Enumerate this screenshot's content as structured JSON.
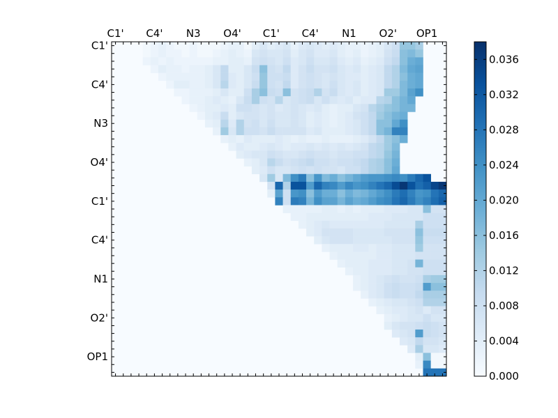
{
  "chart_data": {
    "type": "heatmap",
    "title": "",
    "xlabel": "",
    "ylabel": "",
    "n": 43,
    "x_tick_labels": [
      "C1'",
      "C4'",
      "N3",
      "O4'",
      "C1'",
      "C4'",
      "N1",
      "O2'",
      "OP1"
    ],
    "y_tick_labels": [
      "C1'",
      "C4'",
      "N3",
      "O4'",
      "C1'",
      "C4'",
      "N1",
      "O2'",
      "OP1"
    ],
    "label_indices": [
      0,
      5,
      10,
      15,
      20,
      25,
      30,
      35,
      40
    ],
    "colorbar": {
      "min": 0.0,
      "max": 0.038,
      "ticks": [
        0.0,
        0.004,
        0.008,
        0.012,
        0.016,
        0.02,
        0.024,
        0.028,
        0.032,
        0.036
      ],
      "tick_labels": [
        "0.000",
        "0.004",
        "0.008",
        "0.012",
        "0.016",
        "0.020",
        "0.024",
        "0.028",
        "0.032",
        "0.036"
      ],
      "colormap": [
        "#f7fbff",
        "#deebf7",
        "#c6dbef",
        "#9ecae1",
        "#6baed6",
        "#4292c6",
        "#2171b5",
        "#08519c",
        "#08306b"
      ]
    },
    "rows": [
      {
        "row": 0,
        "start": 4,
        "values": [
          0.001,
          0.002,
          0.003,
          0.002,
          0.001,
          0.001,
          0.002,
          0.001,
          0.001,
          0.001,
          0.002,
          0.003,
          0.003,
          0.001,
          0.004,
          0.006,
          0.004,
          0.005,
          0.006,
          0.003,
          0.005,
          0.006,
          0.005,
          0.004,
          0.005,
          0.004,
          0.003,
          0.003,
          0.002,
          0.003,
          0.004,
          0.006,
          0.008,
          0.015,
          0.015,
          0.013
        ]
      },
      {
        "row": 1,
        "start": 4,
        "values": [
          0.001,
          0.002,
          0.003,
          0.002,
          0.002,
          0.001,
          0.002,
          0.001,
          0.001,
          0.002,
          0.003,
          0.004,
          0.003,
          0.002,
          0.006,
          0.007,
          0.006,
          0.006,
          0.007,
          0.004,
          0.006,
          0.007,
          0.005,
          0.005,
          0.006,
          0.004,
          0.003,
          0.004,
          0.002,
          0.003,
          0.004,
          0.007,
          0.009,
          0.016,
          0.017,
          0.015
        ]
      },
      {
        "row": 2,
        "start": 4,
        "values": [
          0.002,
          0.003,
          0.002,
          0.003,
          0.002,
          0.002,
          0.002,
          0.002,
          0.002,
          0.003,
          0.003,
          0.004,
          0.004,
          0.003,
          0.007,
          0.008,
          0.007,
          0.006,
          0.008,
          0.005,
          0.006,
          0.008,
          0.006,
          0.006,
          0.007,
          0.005,
          0.004,
          0.005,
          0.003,
          0.004,
          0.005,
          0.008,
          0.01,
          0.016,
          0.019,
          0.02
        ]
      },
      {
        "row": 3,
        "start": 5,
        "values": [
          0.002,
          0.004,
          0.003,
          0.003,
          0.002,
          0.003,
          0.003,
          0.004,
          0.006,
          0.01,
          0.004,
          0.004,
          0.006,
          0.009,
          0.016,
          0.008,
          0.007,
          0.01,
          0.005,
          0.007,
          0.009,
          0.007,
          0.007,
          0.008,
          0.006,
          0.005,
          0.006,
          0.004,
          0.005,
          0.006,
          0.01,
          0.012,
          0.017,
          0.02,
          0.021
        ]
      },
      {
        "row": 4,
        "start": 6,
        "values": [
          0.002,
          0.003,
          0.003,
          0.003,
          0.003,
          0.003,
          0.004,
          0.006,
          0.01,
          0.005,
          0.004,
          0.006,
          0.008,
          0.015,
          0.008,
          0.008,
          0.009,
          0.005,
          0.007,
          0.008,
          0.007,
          0.006,
          0.007,
          0.006,
          0.005,
          0.005,
          0.004,
          0.005,
          0.006,
          0.01,
          0.012,
          0.016,
          0.019,
          0.02
        ]
      },
      {
        "row": 5,
        "start": 7,
        "values": [
          0.002,
          0.004,
          0.004,
          0.003,
          0.003,
          0.004,
          0.006,
          0.011,
          0.005,
          0.004,
          0.006,
          0.009,
          0.015,
          0.008,
          0.007,
          0.01,
          0.005,
          0.007,
          0.008,
          0.007,
          0.006,
          0.008,
          0.006,
          0.005,
          0.006,
          0.004,
          0.005,
          0.006,
          0.01,
          0.012,
          0.017,
          0.019,
          0.02
        ]
      },
      {
        "row": 6,
        "start": 8,
        "values": [
          0.002,
          0.002,
          0.003,
          0.003,
          0.003,
          0.004,
          0.006,
          0.004,
          0.004,
          0.008,
          0.013,
          0.016,
          0.009,
          0.008,
          0.016,
          0.007,
          0.008,
          0.009,
          0.012,
          0.007,
          0.009,
          0.006,
          0.005,
          0.006,
          0.004,
          0.005,
          0.006,
          0.014,
          0.014,
          0.017,
          0.021,
          0.024
        ]
      },
      {
        "row": 7,
        "start": 9,
        "values": [
          0.002,
          0.003,
          0.003,
          0.004,
          0.005,
          0.004,
          0.003,
          0.006,
          0.009,
          0.013,
          0.008,
          0.007,
          0.011,
          0.006,
          0.007,
          0.008,
          0.009,
          0.006,
          0.008,
          0.006,
          0.005,
          0.006,
          0.004,
          0.005,
          0.005,
          0.011,
          0.012,
          0.016,
          0.018,
          0.02
        ]
      },
      {
        "row": 8,
        "start": 10,
        "values": [
          0.002,
          0.003,
          0.004,
          0.004,
          0.005,
          0.004,
          0.008,
          0.008,
          0.007,
          0.006,
          0.007,
          0.005,
          0.006,
          0.007,
          0.006,
          0.005,
          0.006,
          0.004,
          0.003,
          0.004,
          0.004,
          0.006,
          0.007,
          0.011,
          0.013,
          0.015,
          0.016,
          0.018,
          0.018
        ]
      },
      {
        "row": 9,
        "start": 11,
        "values": [
          0.002,
          0.004,
          0.005,
          0.009,
          0.004,
          0.006,
          0.007,
          0.007,
          0.006,
          0.007,
          0.006,
          0.006,
          0.007,
          0.006,
          0.004,
          0.005,
          0.004,
          0.003,
          0.004,
          0.005,
          0.007,
          0.008,
          0.01,
          0.014,
          0.016,
          0.018,
          0.019
        ]
      },
      {
        "row": 10,
        "start": 12,
        "values": [
          0.003,
          0.004,
          0.011,
          0.005,
          0.012,
          0.007,
          0.008,
          0.006,
          0.008,
          0.006,
          0.006,
          0.007,
          0.006,
          0.004,
          0.005,
          0.004,
          0.003,
          0.004,
          0.005,
          0.006,
          0.008,
          0.01,
          0.016,
          0.016,
          0.02,
          0.024
        ]
      },
      {
        "row": 11,
        "start": 13,
        "values": [
          0.003,
          0.014,
          0.006,
          0.012,
          0.008,
          0.008,
          0.007,
          0.009,
          0.007,
          0.007,
          0.007,
          0.007,
          0.005,
          0.006,
          0.004,
          0.004,
          0.004,
          0.005,
          0.006,
          0.008,
          0.01,
          0.016,
          0.018,
          0.026,
          0.026
        ]
      },
      {
        "row": 12,
        "start": 14,
        "values": [
          0.003,
          0.004,
          0.003,
          0.005,
          0.004,
          0.004,
          0.004,
          0.005,
          0.004,
          0.003,
          0.004,
          0.003,
          0.003,
          0.004,
          0.003,
          0.003,
          0.003,
          0.004,
          0.005,
          0.007,
          0.01,
          0.014,
          0.016,
          0.019
        ]
      },
      {
        "row": 13,
        "start": 15,
        "values": [
          0.003,
          0.005,
          0.004,
          0.004,
          0.005,
          0.006,
          0.005,
          0.004,
          0.005,
          0.005,
          0.006,
          0.005,
          0.006,
          0.005,
          0.006,
          0.005,
          0.006,
          0.007,
          0.01,
          0.011,
          0.014,
          0.017
        ]
      },
      {
        "row": 14,
        "start": 16,
        "values": [
          0.004,
          0.005,
          0.006,
          0.006,
          0.008,
          0.007,
          0.006,
          0.006,
          0.007,
          0.008,
          0.007,
          0.007,
          0.006,
          0.007,
          0.007,
          0.008,
          0.008,
          0.01,
          0.011,
          0.015,
          0.018
        ]
      },
      {
        "row": 15,
        "start": 17,
        "values": [
          0.003,
          0.004,
          0.006,
          0.011,
          0.009,
          0.007,
          0.008,
          0.009,
          0.01,
          0.008,
          0.008,
          0.007,
          0.008,
          0.008,
          0.009,
          0.01,
          0.012,
          0.013,
          0.016,
          0.019
        ]
      },
      {
        "row": 16,
        "start": 18,
        "values": [
          0.004,
          0.005,
          0.008,
          0.006,
          0.006,
          0.007,
          0.008,
          0.007,
          0.008,
          0.007,
          0.007,
          0.006,
          0.008,
          0.008,
          0.01,
          0.012,
          0.013,
          0.016,
          0.02
        ]
      },
      {
        "row": 17,
        "start": 19,
        "values": [
          0.006,
          0.014,
          0.006,
          0.017,
          0.024,
          0.027,
          0.016,
          0.023,
          0.017,
          0.019,
          0.016,
          0.018,
          0.02,
          0.022,
          0.023,
          0.023,
          0.024,
          0.025,
          0.024,
          0.027,
          0.03,
          0.033
        ]
      },
      {
        "row": 18,
        "start": 20,
        "values": [
          0.007,
          0.03,
          0.012,
          0.033,
          0.033,
          0.022,
          0.03,
          0.026,
          0.025,
          0.022,
          0.025,
          0.023,
          0.024,
          0.026,
          0.028,
          0.03,
          0.034,
          0.037,
          0.033,
          0.029,
          0.031,
          0.035,
          0.037
        ]
      },
      {
        "row": 19,
        "start": 20,
        "values": [
          0.004,
          0.021,
          0.008,
          0.023,
          0.024,
          0.016,
          0.022,
          0.019,
          0.019,
          0.016,
          0.019,
          0.017,
          0.018,
          0.02,
          0.022,
          0.024,
          0.027,
          0.029,
          0.026,
          0.023,
          0.024,
          0.028,
          0.03
        ]
      },
      {
        "row": 20,
        "start": 21,
        "values": [
          0.026,
          0.008,
          0.027,
          0.026,
          0.018,
          0.024,
          0.021,
          0.021,
          0.018,
          0.021,
          0.019,
          0.02,
          0.022,
          0.024,
          0.025,
          0.028,
          0.03,
          0.027,
          0.024,
          0.026,
          0.029,
          0.031
        ]
      },
      {
        "row": 21,
        "start": 22,
        "values": [
          0.003,
          0.003,
          0.003,
          0.003,
          0.003,
          0.004,
          0.004,
          0.003,
          0.004,
          0.003,
          0.004,
          0.004,
          0.004,
          0.005,
          0.005,
          0.005,
          0.006,
          0.006,
          0.016,
          0.007,
          0.007
        ]
      },
      {
        "row": 22,
        "start": 23,
        "values": [
          0.003,
          0.003,
          0.004,
          0.004,
          0.004,
          0.004,
          0.004,
          0.004,
          0.004,
          0.004,
          0.005,
          0.005,
          0.005,
          0.006,
          0.006,
          0.006,
          0.006,
          0.008,
          0.008,
          0.008
        ]
      },
      {
        "row": 23,
        "start": 24,
        "values": [
          0.003,
          0.004,
          0.005,
          0.006,
          0.005,
          0.005,
          0.005,
          0.005,
          0.005,
          0.005,
          0.005,
          0.006,
          0.006,
          0.006,
          0.006,
          0.013,
          0.008,
          0.008,
          0.008
        ]
      },
      {
        "row": 24,
        "start": 25,
        "values": [
          0.004,
          0.005,
          0.007,
          0.007,
          0.007,
          0.007,
          0.006,
          0.006,
          0.006,
          0.006,
          0.007,
          0.007,
          0.007,
          0.007,
          0.016,
          0.009,
          0.009,
          0.009
        ]
      },
      {
        "row": 25,
        "start": 26,
        "values": [
          0.004,
          0.006,
          0.007,
          0.007,
          0.007,
          0.006,
          0.006,
          0.006,
          0.006,
          0.006,
          0.007,
          0.007,
          0.007,
          0.015,
          0.008,
          0.008,
          0.008
        ]
      },
      {
        "row": 26,
        "start": 27,
        "values": [
          0.003,
          0.004,
          0.004,
          0.004,
          0.005,
          0.005,
          0.004,
          0.005,
          0.005,
          0.006,
          0.006,
          0.006,
          0.014,
          0.007,
          0.007,
          0.007
        ]
      },
      {
        "row": 27,
        "start": 28,
        "values": [
          0.003,
          0.004,
          0.004,
          0.004,
          0.004,
          0.004,
          0.005,
          0.005,
          0.006,
          0.006,
          0.006,
          0.007,
          0.007,
          0.007,
          0.007
        ]
      },
      {
        "row": 28,
        "start": 29,
        "values": [
          0.003,
          0.004,
          0.004,
          0.004,
          0.005,
          0.005,
          0.005,
          0.006,
          0.006,
          0.007,
          0.018,
          0.008,
          0.008,
          0.008
        ]
      },
      {
        "row": 29,
        "start": 30,
        "values": [
          0.003,
          0.004,
          0.004,
          0.005,
          0.005,
          0.005,
          0.006,
          0.006,
          0.007,
          0.007,
          0.008,
          0.008,
          0.008
        ]
      },
      {
        "row": 30,
        "start": 31,
        "values": [
          0.003,
          0.004,
          0.005,
          0.006,
          0.007,
          0.008,
          0.007,
          0.007,
          0.008,
          0.013,
          0.014,
          0.014
        ]
      },
      {
        "row": 31,
        "start": 31,
        "values": [
          0.003,
          0.004,
          0.005,
          0.006,
          0.008,
          0.009,
          0.008,
          0.008,
          0.009,
          0.022,
          0.016,
          0.016
        ]
      },
      {
        "row": 32,
        "start": 32,
        "values": [
          0.003,
          0.005,
          0.006,
          0.008,
          0.009,
          0.008,
          0.008,
          0.01,
          0.013,
          0.013,
          0.013
        ]
      },
      {
        "row": 33,
        "start": 33,
        "values": [
          0.003,
          0.004,
          0.005,
          0.006,
          0.006,
          0.007,
          0.008,
          0.012,
          0.012,
          0.012
        ]
      },
      {
        "row": 34,
        "start": 34,
        "values": [
          0.003,
          0.004,
          0.005,
          0.005,
          0.006,
          0.007,
          0.005,
          0.007,
          0.007
        ]
      },
      {
        "row": 35,
        "start": 35,
        "values": [
          0.003,
          0.004,
          0.005,
          0.006,
          0.006,
          0.008,
          0.006,
          0.006
        ]
      },
      {
        "row": 36,
        "start": 35,
        "values": [
          0.004,
          0.006,
          0.007,
          0.007,
          0.008,
          0.009,
          0.008,
          0.007
        ]
      },
      {
        "row": 37,
        "start": 36,
        "values": [
          0.005,
          0.006,
          0.007,
          0.022,
          0.009,
          0.008,
          0.007
        ]
      },
      {
        "row": 38,
        "start": 37,
        "values": [
          0.005,
          0.006,
          0.01,
          0.007,
          0.007,
          0.006
        ]
      },
      {
        "row": 39,
        "start": 38,
        "values": [
          0.005,
          0.013,
          0.006,
          0.006,
          0.005
        ]
      },
      {
        "row": 40,
        "start": 39,
        "values": [
          0.004,
          0.016,
          0.001,
          0.001
        ]
      },
      {
        "row": 41,
        "start": 39,
        "values": [
          0.003,
          0.025,
          0.001,
          0.001
        ]
      },
      {
        "row": 42,
        "start": 40,
        "values": [
          0.028,
          0.028,
          0.028
        ]
      },
      {
        "row": 43,
        "start": 42,
        "values": []
      }
    ]
  }
}
